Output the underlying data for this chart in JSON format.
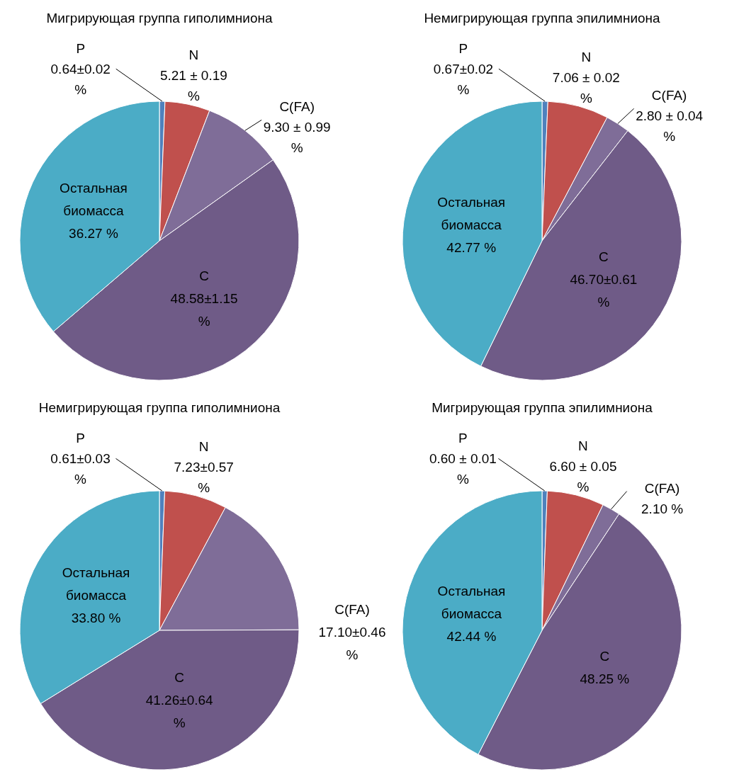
{
  "chart_data": [
    {
      "type": "pie",
      "title": "Мигрирующая группа гиполимниона",
      "categories": [
        "P",
        "N",
        "C(FA)",
        "C",
        "Остальная биомасса"
      ],
      "values": [
        0.64,
        5.21,
        9.3,
        48.58,
        36.27
      ],
      "colors": [
        "#4f81bd",
        "#c0504d",
        "#7f6d98",
        "#6f5b87",
        "#4bacc6"
      ],
      "value_labels": [
        "0.64±0.02 %",
        "5.21 ± 0.19 %",
        "9.30 ± 0.99 %",
        "48.58±1.15 %",
        "36.27 %"
      ]
    },
    {
      "type": "pie",
      "title": "Немигрирующая группа эпилимниона",
      "categories": [
        "P",
        "N",
        "C(FA)",
        "C",
        "Остальная биомасса"
      ],
      "values": [
        0.67,
        7.06,
        2.8,
        46.7,
        42.77
      ],
      "colors": [
        "#4f81bd",
        "#c0504d",
        "#7f6d98",
        "#6f5b87",
        "#4bacc6"
      ],
      "value_labels": [
        "0.67±0.02 %",
        "7.06 ± 0.02 %",
        "2.80 ± 0.04 %",
        "46.70±0.61 %",
        "42.77 %"
      ]
    },
    {
      "type": "pie",
      "title": "Немигрирующая группа гиполимниона",
      "categories": [
        "P",
        "N",
        "C(FA)",
        "C",
        "Остальная биомасса"
      ],
      "values": [
        0.61,
        7.23,
        17.1,
        41.26,
        33.8
      ],
      "colors": [
        "#4f81bd",
        "#c0504d",
        "#7f6d98",
        "#6f5b87",
        "#4bacc6"
      ],
      "value_labels": [
        "0.61±0.03 %",
        "7.23±0.57 %",
        "17.10±0.46 %",
        "41.26±0.64 %",
        "33.80 %"
      ]
    },
    {
      "type": "pie",
      "title": "Мигрирующая группа эпилимниона",
      "categories": [
        "P",
        "N",
        "C(FA)",
        "C",
        "Остальная биомасса"
      ],
      "values": [
        0.6,
        6.6,
        2.1,
        48.25,
        42.44
      ],
      "colors": [
        "#4f81bd",
        "#c0504d",
        "#7f6d98",
        "#6f5b87",
        "#4bacc6"
      ],
      "value_labels": [
        "0.60 ± 0.01 %",
        "6.60 ± 0.05 %",
        "2.10 %",
        "48.25 %",
        "42.44 %"
      ]
    }
  ]
}
